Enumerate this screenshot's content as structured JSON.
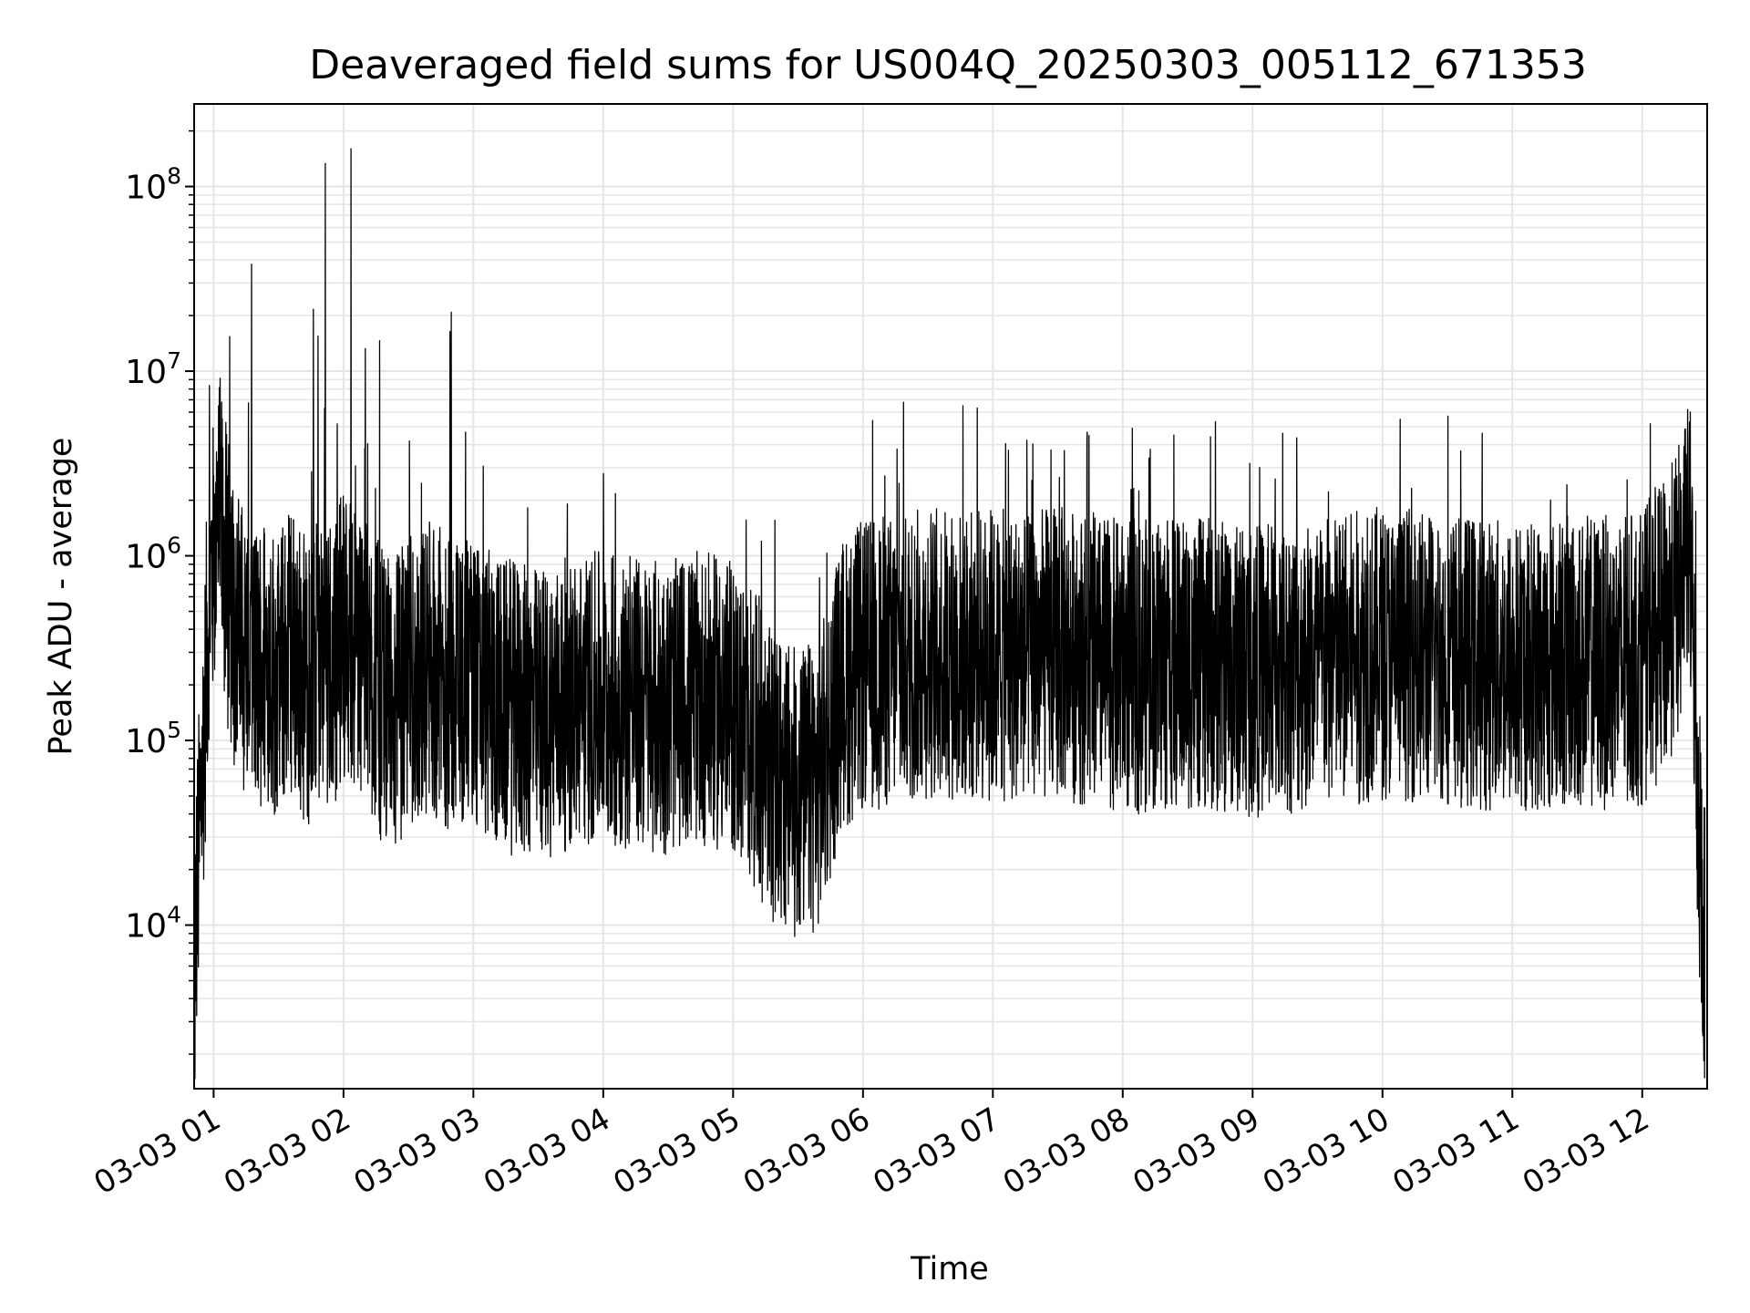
{
  "chart_data": {
    "type": "line",
    "title": "Deaveraged field sums for US004Q_20250303_005112_671353",
    "xlabel": "Time",
    "ylabel": "Peak ADU - average",
    "yscale": "log",
    "ylim": [
      1300,
      280000000
    ],
    "xlim": [
      "2025-03-03 00:51",
      "2025-03-03 12:30"
    ],
    "x_ticks": [
      "03-03 01",
      "03-03 02",
      "03-03 03",
      "03-03 04",
      "03-03 05",
      "03-03 06",
      "03-03 07",
      "03-03 08",
      "03-03 09",
      "03-03 10",
      "03-03 11",
      "03-03 12"
    ],
    "y_ticks": [
      {
        "base": "10",
        "exp": "4"
      },
      {
        "base": "10",
        "exp": "5"
      },
      {
        "base": "10",
        "exp": "6"
      },
      {
        "base": "10",
        "exp": "7"
      },
      {
        "base": "10",
        "exp": "8"
      }
    ],
    "grid": true,
    "line_color": "#000000",
    "grid_color": "#e5e5e5",
    "series": [
      {
        "x": [
          "2025-03-03 00:51",
          "2025-03-03 00:52",
          "2025-03-03 00:54",
          "2025-03-03 00:56",
          "2025-03-03 00:58",
          "2025-03-03 01:00",
          "2025-03-03 01:03",
          "2025-03-03 01:06",
          "2025-03-03 01:10",
          "2025-03-03 01:15",
          "2025-03-03 01:20",
          "2025-03-03 01:25",
          "2025-03-03 01:30",
          "2025-03-03 01:35",
          "2025-03-03 01:40",
          "2025-03-03 01:45",
          "2025-03-03 01:50",
          "2025-03-03 01:55",
          "2025-03-03 02:00",
          "2025-03-03 02:10",
          "2025-03-03 02:20",
          "2025-03-03 02:30",
          "2025-03-03 02:40",
          "2025-03-03 02:50",
          "2025-03-03 03:00",
          "2025-03-03 03:15",
          "2025-03-03 03:30",
          "2025-03-03 03:45",
          "2025-03-03 04:00",
          "2025-03-03 04:15",
          "2025-03-03 04:30",
          "2025-03-03 04:45",
          "2025-03-03 05:00",
          "2025-03-03 05:10",
          "2025-03-03 05:20",
          "2025-03-03 05:30",
          "2025-03-03 05:40",
          "2025-03-03 05:50",
          "2025-03-03 06:00",
          "2025-03-03 06:30",
          "2025-03-03 07:00",
          "2025-03-03 07:30",
          "2025-03-03 08:00",
          "2025-03-03 08:30",
          "2025-03-03 09:00",
          "2025-03-03 09:30",
          "2025-03-03 10:00",
          "2025-03-03 10:30",
          "2025-03-03 11:00",
          "2025-03-03 11:30",
          "2025-03-03 11:50",
          "2025-03-03 12:00",
          "2025-03-03 12:10",
          "2025-03-03 12:18",
          "2025-03-03 12:22",
          "2025-03-03 12:26",
          "2025-03-03 12:29"
        ],
        "y": [
          3000,
          12000,
          40000,
          150000,
          700000,
          900000,
          1500000,
          800000,
          400000,
          300000,
          250000,
          300000,
          200000,
          350000,
          250000,
          200000,
          300000,
          250000,
          400000,
          300000,
          150000,
          200000,
          250000,
          200000,
          200000,
          150000,
          140000,
          160000,
          170000,
          160000,
          150000,
          170000,
          150000,
          100000,
          60000,
          50000,
          60000,
          200000,
          250000,
          300000,
          280000,
          300000,
          250000,
          260000,
          240000,
          260000,
          300000,
          280000,
          250000,
          270000,
          260000,
          280000,
          400000,
          700000,
          1200000,
          40000,
          8000
        ]
      }
    ]
  }
}
